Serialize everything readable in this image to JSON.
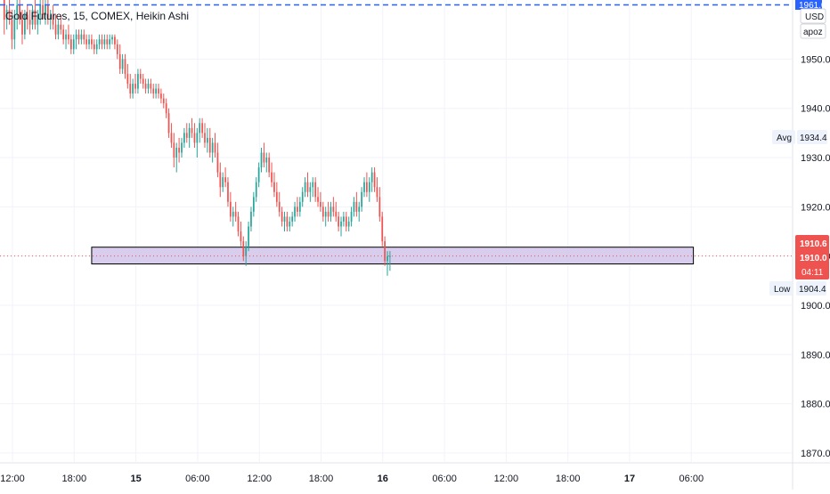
{
  "header": {
    "title": "Gold Futures, 15, COMEX, Heikin Ashi"
  },
  "price_scale": {
    "currency": "USD",
    "indicator": "apoz",
    "top_badge": "1961.0",
    "avg_label": "Avg",
    "avg_value": "1934.4",
    "low_label": "Low",
    "low_value": "1904.4",
    "last_price": "1910.6",
    "current_price": "1910.0",
    "countdown": "04:11",
    "colors": {
      "last": "#ef5350",
      "accent": "#2962ff",
      "box_fill": "#d1c4e9",
      "up": "#26a69a",
      "down": "#ef5350"
    }
  },
  "chart_data": {
    "type": "candlestick",
    "style": "Heikin Ashi",
    "symbol": "Gold Futures",
    "interval": "15",
    "exchange": "COMEX",
    "y_ticks": [
      1950.0,
      1940.0,
      1930.0,
      1920.0,
      1910.0,
      1900.0,
      1890.0,
      1880.0,
      1870.0
    ],
    "y_tick_labels": [
      "1950.0",
      "1940.0",
      "1930.0",
      "1920.0",
      "1910.0",
      "1900.0",
      "1890.0",
      "1880.0",
      "1870.0"
    ],
    "ylim": [
      1868,
      1962
    ],
    "x_tick_labels": [
      "12:00",
      "18:00",
      "15",
      "06:00",
      "12:00",
      "18:00",
      "16",
      "06:00",
      "12:00",
      "18:00",
      "17",
      "06:00"
    ],
    "x_tick_bold": [
      false,
      false,
      true,
      false,
      false,
      false,
      true,
      false,
      false,
      false,
      true,
      false
    ],
    "x_tick_hours": [
      0,
      6,
      12,
      18,
      24,
      30,
      36,
      42,
      48,
      54,
      60,
      66
    ],
    "support_zone": {
      "from_hour": 7.7,
      "to_hour": 66.2,
      "low": 1908.4,
      "high": 1911.8
    },
    "top_line": {
      "price": 1961.0,
      "style": "dashed"
    },
    "current_price_line": 1910.0,
    "grid": true,
    "candles_hours_start": -0.8,
    "candles_hours_step": 0.25,
    "candles": [
      [
        1962,
        1962.5,
        1955,
        1958
      ],
      [
        1958,
        1961,
        1956,
        1960
      ],
      [
        1960,
        1962,
        1957,
        1958
      ],
      [
        1958,
        1960,
        1952,
        1954
      ],
      [
        1954,
        1960,
        1952,
        1959
      ],
      [
        1959,
        1962,
        1956,
        1961
      ],
      [
        1961,
        1962,
        1957,
        1958
      ],
      [
        1958,
        1960,
        1953,
        1955
      ],
      [
        1955,
        1960,
        1954,
        1959
      ],
      [
        1959,
        1961,
        1956,
        1958
      ],
      [
        1958,
        1960,
        1955,
        1957
      ],
      [
        1957,
        1961,
        1956,
        1960
      ],
      [
        1960,
        1962,
        1956,
        1957
      ],
      [
        1957,
        1960,
        1955,
        1959
      ],
      [
        1959,
        1962,
        1957,
        1961
      ],
      [
        1961,
        1962,
        1958,
        1959
      ],
      [
        1959,
        1962,
        1957,
        1961
      ],
      [
        1961,
        1962,
        1957,
        1958
      ],
      [
        1958,
        1960,
        1956,
        1959
      ],
      [
        1959,
        1961,
        1956,
        1957
      ],
      [
        1957,
        1959,
        1954,
        1955
      ],
      [
        1955,
        1958,
        1954,
        1957
      ],
      [
        1957,
        1959,
        1955,
        1956
      ],
      [
        1956,
        1957,
        1953,
        1954
      ],
      [
        1954,
        1956,
        1952,
        1955
      ],
      [
        1955,
        1957,
        1953,
        1954
      ],
      [
        1954,
        1955,
        1951,
        1952
      ],
      [
        1952,
        1955,
        1951,
        1954
      ],
      [
        1954,
        1956,
        1952,
        1955
      ],
      [
        1955,
        1956,
        1953,
        1954
      ],
      [
        1954,
        1956,
        1953,
        1955
      ],
      [
        1955,
        1956,
        1953,
        1954
      ],
      [
        1954,
        1955,
        1952,
        1953
      ],
      [
        1953,
        1955,
        1952,
        1954
      ],
      [
        1954,
        1955,
        1952,
        1953
      ],
      [
        1953,
        1954,
        1951,
        1952
      ],
      [
        1952,
        1954,
        1951,
        1953
      ],
      [
        1953,
        1955,
        1952,
        1954
      ],
      [
        1954,
        1955,
        1952,
        1953
      ],
      [
        1953,
        1955,
        1952,
        1954
      ],
      [
        1954,
        1955,
        1952,
        1953
      ],
      [
        1953,
        1955,
        1952,
        1954
      ],
      [
        1954,
        1955,
        1953,
        1954.5
      ],
      [
        1954.5,
        1955,
        1952,
        1953
      ],
      [
        1953,
        1954,
        1950,
        1951
      ],
      [
        1951,
        1953,
        1947,
        1948
      ],
      [
        1948,
        1951,
        1947,
        1950
      ],
      [
        1950,
        1951,
        1946,
        1947
      ],
      [
        1947,
        1949,
        1944,
        1945
      ],
      [
        1945,
        1947,
        1942,
        1943
      ],
      [
        1943,
        1946,
        1942,
        1945
      ],
      [
        1945,
        1947,
        1943,
        1944
      ],
      [
        1944,
        1948,
        1943,
        1947
      ],
      [
        1947,
        1948,
        1945,
        1946
      ],
      [
        1946,
        1947,
        1944,
        1945
      ],
      [
        1945,
        1946,
        1943,
        1944
      ],
      [
        1944,
        1946,
        1943,
        1945
      ],
      [
        1945,
        1946,
        1943,
        1944
      ],
      [
        1944,
        1945,
        1942,
        1943
      ],
      [
        1943,
        1945,
        1942,
        1944
      ],
      [
        1944,
        1945,
        1942,
        1943
      ],
      [
        1943,
        1944,
        1941,
        1942
      ],
      [
        1942,
        1943,
        1940,
        1941
      ],
      [
        1941,
        1942,
        1938,
        1939
      ],
      [
        1939,
        1940,
        1934,
        1935
      ],
      [
        1935,
        1937,
        1932,
        1933
      ],
      [
        1933,
        1935,
        1928,
        1930
      ],
      [
        1930,
        1933,
        1927,
        1932
      ],
      [
        1932,
        1934,
        1929,
        1931
      ],
      [
        1931,
        1934,
        1930,
        1933
      ],
      [
        1933,
        1936,
        1932,
        1935
      ],
      [
        1935,
        1937,
        1933,
        1934
      ],
      [
        1934,
        1937,
        1932,
        1936
      ],
      [
        1936,
        1938,
        1934,
        1935
      ],
      [
        1935,
        1937,
        1932,
        1933
      ],
      [
        1933,
        1936,
        1930,
        1935
      ],
      [
        1935,
        1938,
        1933,
        1937
      ],
      [
        1937,
        1938,
        1934,
        1935
      ],
      [
        1935,
        1937,
        1932,
        1933
      ],
      [
        1933,
        1936,
        1931,
        1934
      ],
      [
        1934,
        1936,
        1930,
        1931
      ],
      [
        1931,
        1934,
        1929,
        1933
      ],
      [
        1933,
        1935,
        1930,
        1931
      ],
      [
        1931,
        1933,
        1926,
        1927
      ],
      [
        1927,
        1929,
        1922,
        1924
      ],
      [
        1924,
        1927,
        1923,
        1926
      ],
      [
        1926,
        1928,
        1924,
        1925
      ],
      [
        1925,
        1926,
        1920,
        1921
      ],
      [
        1921,
        1923,
        1917,
        1918
      ],
      [
        1918,
        1920,
        1916,
        1919
      ],
      [
        1919,
        1921,
        1917,
        1918
      ],
      [
        1918,
        1919,
        1914,
        1915
      ],
      [
        1915,
        1917,
        1912,
        1913
      ],
      [
        1913,
        1914,
        1909,
        1910
      ],
      [
        1910,
        1913,
        1908,
        1912
      ],
      [
        1912,
        1917,
        1911,
        1916
      ],
      [
        1916,
        1920,
        1915,
        1919
      ],
      [
        1919,
        1923,
        1918,
        1922
      ],
      [
        1922,
        1926,
        1921,
        1925
      ],
      [
        1925,
        1929,
        1924,
        1928
      ],
      [
        1928,
        1932,
        1927,
        1931
      ],
      [
        1931,
        1933,
        1928,
        1929
      ],
      [
        1929,
        1931,
        1927,
        1930
      ],
      [
        1930,
        1931,
        1926,
        1927
      ],
      [
        1927,
        1929,
        1924,
        1925
      ],
      [
        1925,
        1927,
        1922,
        1923
      ],
      [
        1923,
        1925,
        1920,
        1921
      ],
      [
        1921,
        1923,
        1918,
        1919
      ],
      [
        1919,
        1920,
        1916,
        1917
      ],
      [
        1917,
        1919,
        1915,
        1918
      ],
      [
        1918,
        1919,
        1915,
        1916
      ],
      [
        1916,
        1918,
        1915,
        1917
      ],
      [
        1917,
        1919,
        1916,
        1918
      ],
      [
        1918,
        1921,
        1917,
        1920
      ],
      [
        1920,
        1922,
        1918,
        1919
      ],
      [
        1919,
        1922,
        1918,
        1921
      ],
      [
        1921,
        1924,
        1920,
        1923
      ],
      [
        1923,
        1926,
        1922,
        1925
      ],
      [
        1925,
        1927,
        1922,
        1923
      ],
      [
        1923,
        1925,
        1921,
        1924
      ],
      [
        1924,
        1926,
        1922,
        1925
      ],
      [
        1925,
        1926,
        1921,
        1922
      ],
      [
        1922,
        1924,
        1920,
        1921
      ],
      [
        1921,
        1923,
        1919,
        1920
      ],
      [
        1920,
        1921,
        1917,
        1918
      ],
      [
        1918,
        1920,
        1916,
        1919
      ],
      [
        1919,
        1921,
        1917,
        1918
      ],
      [
        1918,
        1921,
        1917,
        1920
      ],
      [
        1920,
        1922,
        1918,
        1919
      ],
      [
        1919,
        1921,
        1917,
        1918
      ],
      [
        1918,
        1919,
        1915,
        1916
      ],
      [
        1916,
        1918,
        1914,
        1917
      ],
      [
        1917,
        1919,
        1916,
        1918
      ],
      [
        1918,
        1919,
        1915,
        1916
      ],
      [
        1916,
        1918,
        1915,
        1917
      ],
      [
        1917,
        1920,
        1916,
        1919
      ],
      [
        1919,
        1922,
        1918,
        1921
      ],
      [
        1921,
        1923,
        1918,
        1919
      ],
      [
        1919,
        1921,
        1917,
        1920
      ],
      [
        1920,
        1924,
        1919,
        1923
      ],
      [
        1923,
        1926,
        1922,
        1925
      ],
      [
        1925,
        1927,
        1922,
        1923
      ],
      [
        1923,
        1926,
        1921,
        1925
      ],
      [
        1925,
        1928,
        1923,
        1927
      ],
      [
        1927,
        1928,
        1923,
        1924
      ],
      [
        1924,
        1926,
        1921,
        1922
      ],
      [
        1922,
        1924,
        1917,
        1918
      ],
      [
        1918,
        1919,
        1912,
        1913
      ],
      [
        1913,
        1914,
        1908,
        1909
      ],
      [
        1909,
        1911,
        1906,
        1910
      ],
      [
        1910,
        1911,
        1907,
        1910
      ]
    ]
  }
}
